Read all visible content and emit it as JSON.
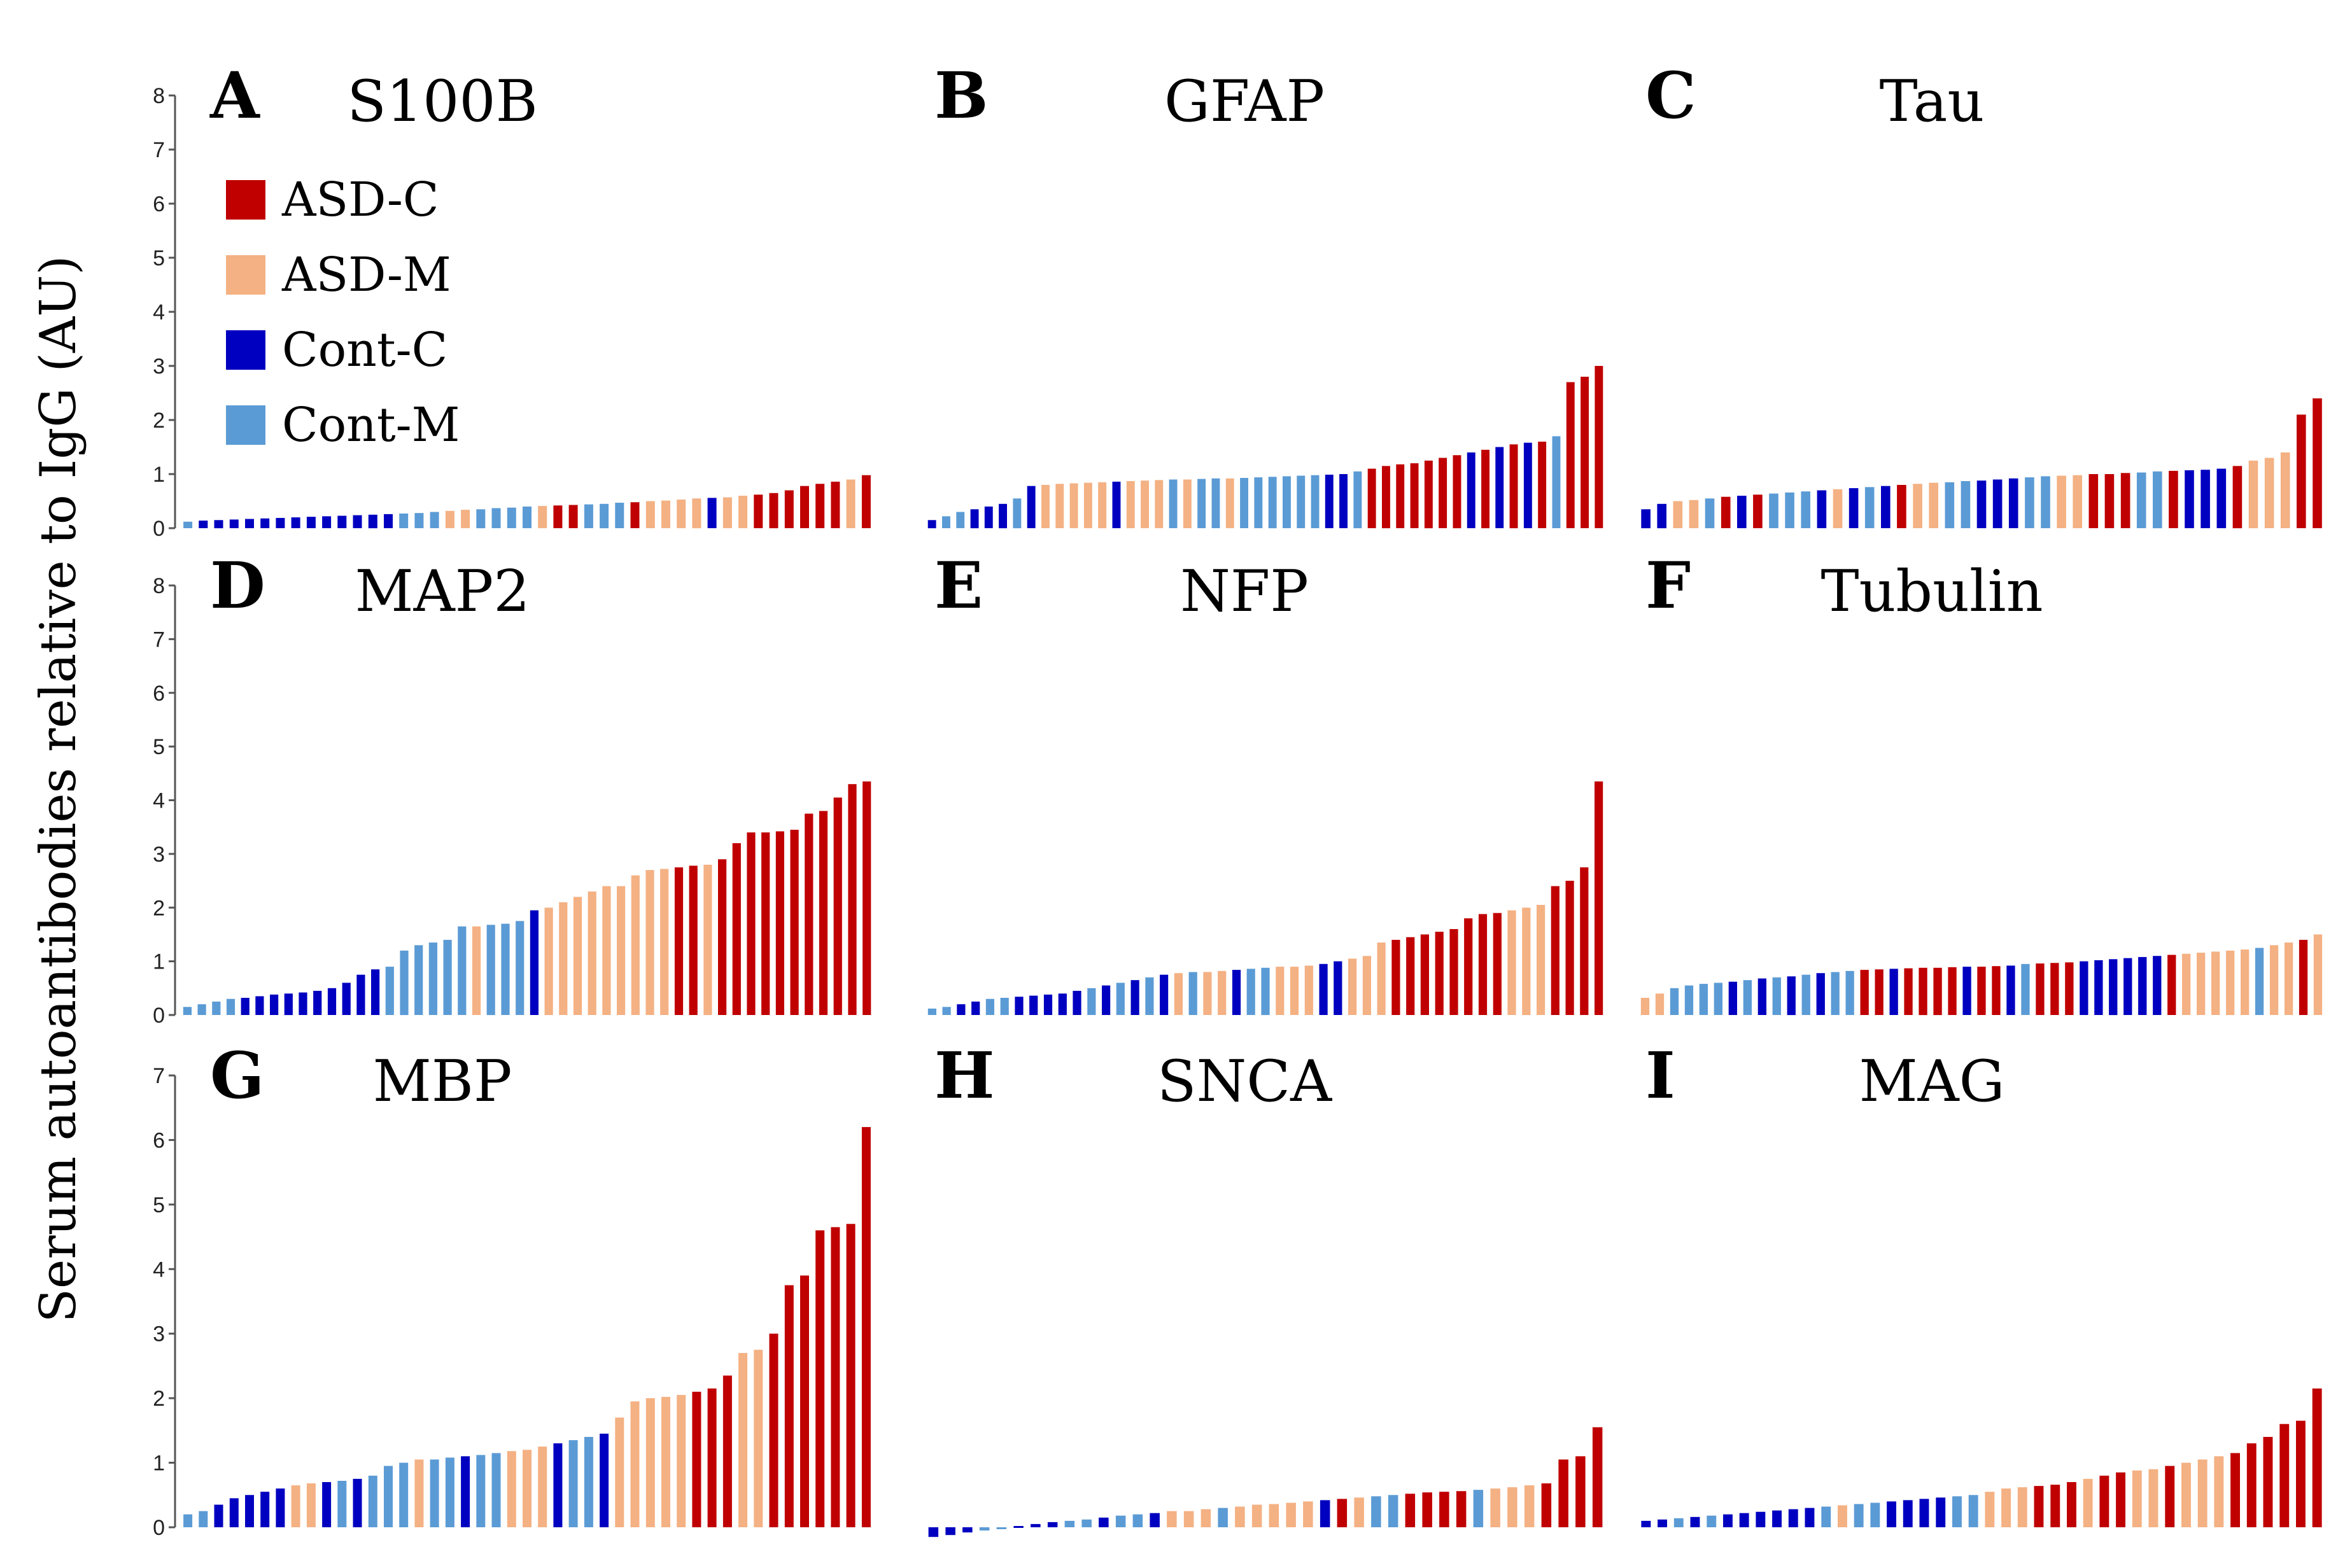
{
  "y_axis_label": "Serum autoantibodies relative  to IgG (AU)",
  "legend": [
    {
      "label": "ASD-C",
      "key": "AC",
      "color": "#c00000"
    },
    {
      "label": "ASD-M",
      "key": "AM",
      "color": "#f4b183"
    },
    {
      "label": "Cont-C",
      "key": "CC",
      "color": "#0000c0"
    },
    {
      "label": "Cont-M",
      "key": "CM",
      "color": "#5b9bd5"
    }
  ],
  "chart_data": [
    {
      "type": "bar",
      "letter": "A",
      "title": "S100B",
      "ylim": [
        0,
        8
      ],
      "yticks": [
        0,
        1,
        2,
        3,
        4,
        5,
        6,
        7,
        8
      ],
      "groups": [
        "CM",
        "CC",
        "CC",
        "CC",
        "CC",
        "CC",
        "CC",
        "CC",
        "CC",
        "CC",
        "CC",
        "CC",
        "CC",
        "CC",
        "CM",
        "CM",
        "CM",
        "AM",
        "AM",
        "CM",
        "CM",
        "CM",
        "CM",
        "AM",
        "AC",
        "AC",
        "CM",
        "CM",
        "CM",
        "AC",
        "AM",
        "AM",
        "AM",
        "AM",
        "CC",
        "AM",
        "AM",
        "AC",
        "AC",
        "AC",
        "AC",
        "AC",
        "AC",
        "AM",
        "AC"
      ],
      "values": [
        0.12,
        0.14,
        0.15,
        0.16,
        0.17,
        0.18,
        0.19,
        0.2,
        0.21,
        0.22,
        0.23,
        0.24,
        0.25,
        0.26,
        0.27,
        0.28,
        0.3,
        0.32,
        0.34,
        0.35,
        0.37,
        0.38,
        0.4,
        0.41,
        0.42,
        0.43,
        0.44,
        0.45,
        0.47,
        0.48,
        0.5,
        0.51,
        0.53,
        0.55,
        0.56,
        0.57,
        0.6,
        0.62,
        0.65,
        0.7,
        0.78,
        0.82,
        0.86,
        0.9,
        0.98
      ]
    },
    {
      "type": "bar",
      "letter": "B",
      "title": "GFAP",
      "ylim": [
        0,
        8
      ],
      "yticks": [],
      "groups": [
        "CC",
        "CM",
        "CM",
        "CC",
        "CC",
        "CC",
        "CM",
        "CC",
        "AM",
        "AM",
        "AM",
        "AM",
        "AM",
        "CC",
        "AM",
        "AM",
        "AM",
        "CM",
        "AM",
        "CM",
        "CM",
        "AM",
        "CM",
        "CM",
        "CM",
        "CM",
        "CM",
        "CM",
        "CC",
        "CC",
        "CM",
        "AC",
        "AC",
        "AC",
        "AC",
        "AC",
        "AC",
        "AC",
        "CC",
        "AC",
        "CC",
        "AC",
        "CC",
        "AC",
        "CM",
        "AC",
        "AC",
        "AC"
      ],
      "values": [
        0.15,
        0.22,
        0.3,
        0.35,
        0.4,
        0.45,
        0.55,
        0.78,
        0.8,
        0.82,
        0.83,
        0.84,
        0.85,
        0.86,
        0.87,
        0.88,
        0.89,
        0.9,
        0.9,
        0.91,
        0.92,
        0.92,
        0.93,
        0.94,
        0.95,
        0.96,
        0.97,
        0.98,
        0.99,
        1.0,
        1.05,
        1.1,
        1.15,
        1.18,
        1.2,
        1.25,
        1.3,
        1.35,
        1.4,
        1.45,
        1.5,
        1.55,
        1.58,
        1.6,
        1.7,
        2.7,
        2.8,
        3.0
      ]
    },
    {
      "type": "bar",
      "letter": "C",
      "title": "Tau",
      "ylim": [
        0,
        8
      ],
      "yticks": [],
      "groups": [
        "CC",
        "CC",
        "AM",
        "AM",
        "CM",
        "AC",
        "CC",
        "AC",
        "CM",
        "CM",
        "CM",
        "CC",
        "AM",
        "CC",
        "CM",
        "CC",
        "AC",
        "AM",
        "AM",
        "CM",
        "CM",
        "CC",
        "CC",
        "CC",
        "CM",
        "CM",
        "AM",
        "AM",
        "AC",
        "AC",
        "AC",
        "CM",
        "CM",
        "AC",
        "CC",
        "CC",
        "CC",
        "AC",
        "AM",
        "AM",
        "AM",
        "AC",
        "AC"
      ],
      "values": [
        0.35,
        0.45,
        0.5,
        0.52,
        0.55,
        0.58,
        0.6,
        0.62,
        0.64,
        0.66,
        0.68,
        0.7,
        0.72,
        0.74,
        0.76,
        0.78,
        0.8,
        0.82,
        0.84,
        0.85,
        0.87,
        0.88,
        0.9,
        0.92,
        0.94,
        0.96,
        0.97,
        0.98,
        1.0,
        1.0,
        1.02,
        1.03,
        1.05,
        1.06,
        1.07,
        1.08,
        1.1,
        1.15,
        1.25,
        1.3,
        1.4,
        2.1,
        2.4
      ]
    },
    {
      "type": "bar",
      "letter": "D",
      "title": "MAP2",
      "ylim": [
        0,
        8
      ],
      "yticks": [
        0,
        1,
        2,
        3,
        4,
        5,
        6,
        7,
        8
      ],
      "groups": [
        "CM",
        "CM",
        "CM",
        "CM",
        "CC",
        "CC",
        "CC",
        "CC",
        "CC",
        "CC",
        "CC",
        "CC",
        "CC",
        "CC",
        "CM",
        "CM",
        "CM",
        "CM",
        "CM",
        "CM",
        "AM",
        "CM",
        "CM",
        "CM",
        "CC",
        "AM",
        "AM",
        "AM",
        "AM",
        "AM",
        "AM",
        "AM",
        "AM",
        "AM",
        "AC",
        "AC",
        "AM",
        "AC",
        "AC",
        "AC",
        "AC",
        "AC",
        "AC",
        "AC",
        "AC",
        "AC",
        "AC",
        "AC"
      ],
      "values": [
        0.15,
        0.2,
        0.25,
        0.3,
        0.32,
        0.35,
        0.38,
        0.4,
        0.42,
        0.45,
        0.5,
        0.6,
        0.75,
        0.85,
        0.9,
        1.2,
        1.3,
        1.35,
        1.4,
        1.65,
        1.65,
        1.68,
        1.7,
        1.75,
        1.95,
        2.0,
        2.1,
        2.2,
        2.3,
        2.4,
        2.4,
        2.6,
        2.7,
        2.72,
        2.75,
        2.78,
        2.8,
        2.9,
        3.2,
        3.4,
        3.4,
        3.42,
        3.45,
        3.75,
        3.8,
        4.05,
        4.3,
        4.35
      ]
    },
    {
      "type": "bar",
      "letter": "E",
      "title": "NFP",
      "ylim": [
        0,
        8
      ],
      "yticks": [],
      "groups": [
        "CM",
        "CM",
        "CC",
        "CC",
        "CM",
        "CM",
        "CC",
        "CC",
        "CC",
        "CC",
        "CC",
        "CM",
        "CC",
        "CM",
        "CC",
        "CM",
        "CC",
        "AM",
        "CM",
        "AM",
        "AM",
        "CC",
        "CM",
        "CM",
        "AM",
        "AM",
        "AM",
        "CC",
        "CC",
        "AM",
        "AM",
        "AM",
        "AC",
        "AC",
        "AC",
        "AC",
        "AC",
        "AC",
        "AC",
        "AC",
        "AM",
        "AM",
        "AM",
        "AC",
        "AC",
        "AC",
        "AC"
      ],
      "values": [
        0.12,
        0.15,
        0.2,
        0.25,
        0.3,
        0.32,
        0.34,
        0.36,
        0.38,
        0.4,
        0.45,
        0.5,
        0.55,
        0.6,
        0.65,
        0.7,
        0.75,
        0.78,
        0.8,
        0.8,
        0.82,
        0.84,
        0.86,
        0.88,
        0.9,
        0.9,
        0.92,
        0.95,
        1.0,
        1.05,
        1.1,
        1.35,
        1.4,
        1.45,
        1.5,
        1.55,
        1.6,
        1.8,
        1.88,
        1.9,
        1.95,
        2.0,
        2.05,
        2.4,
        2.5,
        2.75,
        4.35
      ]
    },
    {
      "type": "bar",
      "letter": "F",
      "title": "Tubulin",
      "ylim": [
        0,
        8
      ],
      "yticks": [],
      "groups": [
        "AM",
        "AM",
        "CM",
        "CM",
        "CM",
        "CM",
        "CC",
        "CM",
        "CC",
        "CM",
        "CC",
        "CM",
        "CC",
        "CM",
        "CM",
        "AC",
        "AC",
        "CC",
        "AC",
        "AC",
        "AC",
        "AC",
        "CC",
        "AC",
        "AC",
        "CC",
        "CM",
        "AC",
        "AC",
        "AC",
        "CC",
        "CC",
        "CC",
        "CC",
        "CC",
        "CC",
        "AC",
        "AM",
        "AM",
        "AM",
        "AM",
        "AM",
        "CM",
        "AM",
        "AM",
        "AC",
        "AM"
      ],
      "values": [
        0.32,
        0.4,
        0.5,
        0.55,
        0.58,
        0.6,
        0.62,
        0.65,
        0.68,
        0.7,
        0.72,
        0.75,
        0.78,
        0.8,
        0.82,
        0.84,
        0.85,
        0.86,
        0.87,
        0.88,
        0.88,
        0.89,
        0.9,
        0.9,
        0.91,
        0.92,
        0.95,
        0.96,
        0.97,
        0.98,
        1.0,
        1.02,
        1.04,
        1.06,
        1.08,
        1.1,
        1.12,
        1.14,
        1.16,
        1.18,
        1.2,
        1.22,
        1.25,
        1.3,
        1.35,
        1.4,
        1.5
      ]
    },
    {
      "type": "bar",
      "letter": "G",
      "title": "MBP",
      "ylim": [
        0,
        7
      ],
      "yticks": [
        0,
        1,
        2,
        3,
        4,
        5,
        6,
        7
      ],
      "groups": [
        "CM",
        "CM",
        "CC",
        "CC",
        "CC",
        "CC",
        "CC",
        "AM",
        "AM",
        "CC",
        "CM",
        "CC",
        "CM",
        "CM",
        "CM",
        "AM",
        "CM",
        "CM",
        "CC",
        "CM",
        "CM",
        "AM",
        "AM",
        "AM",
        "CC",
        "CM",
        "CM",
        "CC",
        "AM",
        "AM",
        "AM",
        "AM",
        "AM",
        "AC",
        "AC",
        "AC",
        "AM",
        "AM",
        "AC",
        "AC",
        "AC",
        "AC",
        "AC",
        "AC",
        "AC"
      ],
      "values": [
        0.2,
        0.25,
        0.35,
        0.45,
        0.5,
        0.55,
        0.6,
        0.65,
        0.68,
        0.7,
        0.72,
        0.75,
        0.8,
        0.95,
        1.0,
        1.05,
        1.05,
        1.08,
        1.1,
        1.12,
        1.15,
        1.18,
        1.2,
        1.25,
        1.3,
        1.35,
        1.4,
        1.45,
        1.7,
        1.95,
        2.0,
        2.02,
        2.05,
        2.1,
        2.15,
        2.35,
        2.7,
        2.75,
        3.0,
        3.75,
        3.9,
        4.6,
        4.65,
        4.7,
        6.2
      ]
    },
    {
      "type": "bar",
      "letter": "H",
      "title": "SNCA",
      "ylim": [
        0,
        7
      ],
      "yticks": [],
      "groups": [
        "CC",
        "CC",
        "CC",
        "CM",
        "CM",
        "CC",
        "CC",
        "CC",
        "CM",
        "CM",
        "CC",
        "CM",
        "CM",
        "CC",
        "AM",
        "AM",
        "AM",
        "CM",
        "AM",
        "AM",
        "AM",
        "AM",
        "AM",
        "CC",
        "AC",
        "AM",
        "CM",
        "CM",
        "AC",
        "AC",
        "AC",
        "AC",
        "CM",
        "AM",
        "AM",
        "AM",
        "AC",
        "AC",
        "AC",
        "AC"
      ],
      "values": [
        -0.15,
        -0.12,
        -0.08,
        -0.05,
        0.0,
        0.02,
        0.05,
        0.08,
        0.1,
        0.12,
        0.15,
        0.18,
        0.2,
        0.22,
        0.25,
        0.25,
        0.28,
        0.3,
        0.32,
        0.35,
        0.36,
        0.38,
        0.4,
        0.42,
        0.44,
        0.46,
        0.48,
        0.5,
        0.52,
        0.54,
        0.55,
        0.56,
        0.58,
        0.6,
        0.62,
        0.65,
        0.68,
        1.05,
        1.1,
        1.55
      ]
    },
    {
      "type": "bar",
      "letter": "I",
      "title": "MAG",
      "ylim": [
        0,
        7
      ],
      "yticks": [],
      "groups": [
        "CC",
        "CC",
        "CM",
        "CC",
        "CM",
        "CC",
        "CC",
        "CC",
        "CC",
        "CC",
        "CC",
        "CM",
        "AM",
        "CM",
        "CM",
        "CC",
        "CC",
        "CC",
        "CC",
        "CM",
        "CM",
        "AM",
        "AM",
        "AM",
        "AC",
        "AC",
        "AC",
        "AM",
        "AC",
        "AC",
        "AM",
        "AM",
        "AC",
        "AM",
        "AM",
        "AM",
        "AC",
        "AC",
        "AC",
        "AC",
        "AC",
        "AC"
      ],
      "values": [
        0.1,
        0.12,
        0.14,
        0.16,
        0.18,
        0.2,
        0.22,
        0.24,
        0.26,
        0.28,
        0.3,
        0.32,
        0.34,
        0.36,
        0.38,
        0.4,
        0.42,
        0.44,
        0.46,
        0.48,
        0.5,
        0.55,
        0.6,
        0.62,
        0.64,
        0.66,
        0.7,
        0.75,
        0.8,
        0.85,
        0.88,
        0.9,
        0.95,
        1.0,
        1.05,
        1.1,
        1.15,
        1.3,
        1.4,
        1.6,
        1.65,
        2.15
      ]
    }
  ]
}
